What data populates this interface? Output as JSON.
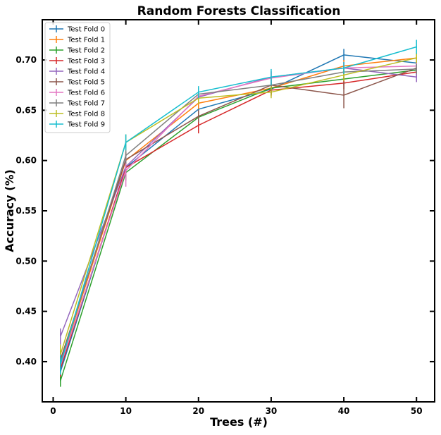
{
  "chart_data": {
    "type": "line",
    "title": "Random Forests Classification",
    "xlabel": "Trees (#)",
    "ylabel": "Accuracy (%)",
    "x": [
      1,
      10,
      20,
      30,
      40,
      50
    ],
    "xlim": [
      -1.5,
      52.5
    ],
    "ylim": [
      0.36,
      0.74
    ],
    "xticks": [
      0,
      10,
      20,
      30,
      40,
      50
    ],
    "yticks": [
      0.4,
      0.45,
      0.5,
      0.55,
      0.6,
      0.65,
      0.7
    ],
    "grid": false,
    "legend_position": "upper left",
    "series": [
      {
        "name": "Test Fold 0",
        "color": "#1f77b4",
        "values": [
          0.39,
          0.593,
          0.651,
          0.671,
          0.705,
          0.697
        ],
        "errors": [
          0.01,
          0.008,
          0.006,
          0.006,
          0.006,
          0.005
        ]
      },
      {
        "name": "Test Fold 1",
        "color": "#ff7f0e",
        "values": [
          0.398,
          0.6,
          0.657,
          0.672,
          0.694,
          0.702
        ],
        "errors": [
          0.01,
          0.008,
          0.006,
          0.006,
          0.006,
          0.005
        ]
      },
      {
        "name": "Test Fold 2",
        "color": "#2ca02c",
        "values": [
          0.381,
          0.588,
          0.643,
          0.672,
          0.681,
          0.69
        ],
        "errors": [
          0.006,
          0.008,
          0.006,
          0.006,
          0.006,
          0.005
        ]
      },
      {
        "name": "Test Fold 3",
        "color": "#d62728",
        "values": [
          0.393,
          0.593,
          0.635,
          0.67,
          0.677,
          0.688
        ],
        "errors": [
          0.008,
          0.008,
          0.008,
          0.006,
          0.006,
          0.005
        ]
      },
      {
        "name": "Test Fold 4",
        "color": "#9467bd",
        "values": [
          0.425,
          0.594,
          0.663,
          0.683,
          0.692,
          0.683
        ],
        "errors": [
          0.008,
          0.008,
          0.006,
          0.006,
          0.006,
          0.005
        ]
      },
      {
        "name": "Test Fold 5",
        "color": "#8c564b",
        "values": [
          0.402,
          0.601,
          0.644,
          0.675,
          0.665,
          0.692
        ],
        "errors": [
          0.01,
          0.008,
          0.006,
          0.008,
          0.013,
          0.005
        ]
      },
      {
        "name": "Test Fold 6",
        "color": "#e377c2",
        "values": [
          0.396,
          0.59,
          0.664,
          0.682,
          0.692,
          0.694
        ],
        "errors": [
          0.008,
          0.016,
          0.006,
          0.006,
          0.006,
          0.005
        ]
      },
      {
        "name": "Test Fold 7",
        "color": "#7f7f7f",
        "values": [
          0.399,
          0.605,
          0.666,
          0.675,
          0.688,
          0.691
        ],
        "errors": [
          0.01,
          0.008,
          0.006,
          0.006,
          0.006,
          0.005
        ]
      },
      {
        "name": "Test Fold 8",
        "color": "#bcbd22",
        "values": [
          0.407,
          0.618,
          0.662,
          0.668,
          0.685,
          0.702
        ],
        "errors": [
          0.01,
          0.008,
          0.006,
          0.006,
          0.006,
          0.005
        ]
      },
      {
        "name": "Test Fold 9",
        "color": "#17becf",
        "values": [
          0.397,
          0.618,
          0.668,
          0.683,
          0.692,
          0.713
        ],
        "errors": [
          0.01,
          0.008,
          0.006,
          0.008,
          0.006,
          0.007
        ]
      }
    ]
  }
}
